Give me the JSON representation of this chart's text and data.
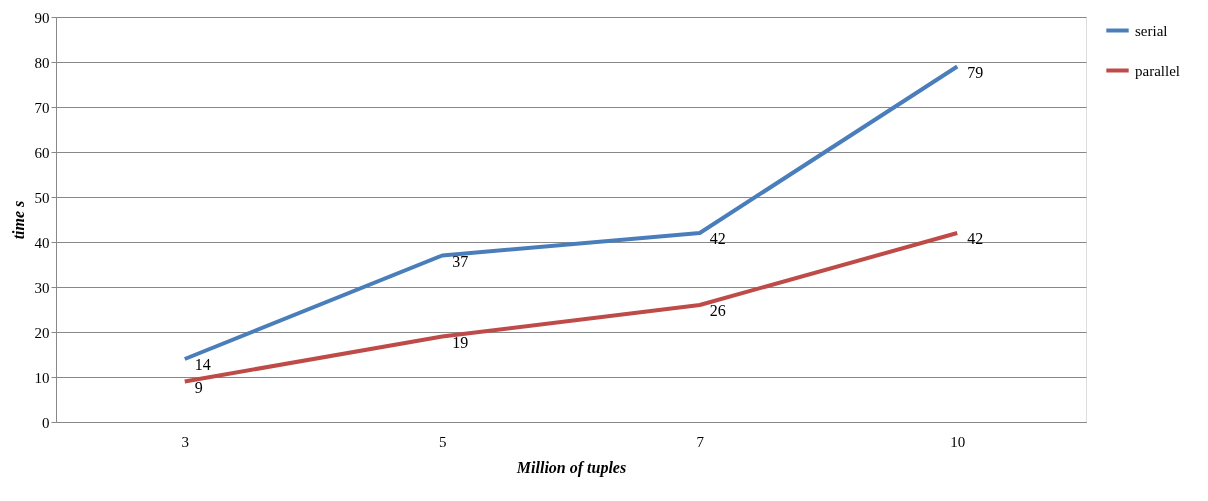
{
  "chart_data": {
    "type": "line",
    "xlabel": "Million of tuples",
    "ylabel": "time s",
    "categories": [
      "3",
      "5",
      "7",
      "10"
    ],
    "series": [
      {
        "name": "serial",
        "color": "#4a7ebb",
        "values": [
          14,
          37,
          42,
          79
        ]
      },
      {
        "name": "parallel",
        "color": "#be4b48",
        "values": [
          9,
          19,
          26,
          42
        ]
      }
    ],
    "ylim": [
      0,
      90
    ],
    "yticks": [
      0,
      10,
      20,
      30,
      40,
      50,
      60,
      70,
      80,
      90
    ],
    "grid": "y",
    "legend": "right",
    "data_labels": true,
    "marker": "none",
    "line_style": "solid"
  }
}
